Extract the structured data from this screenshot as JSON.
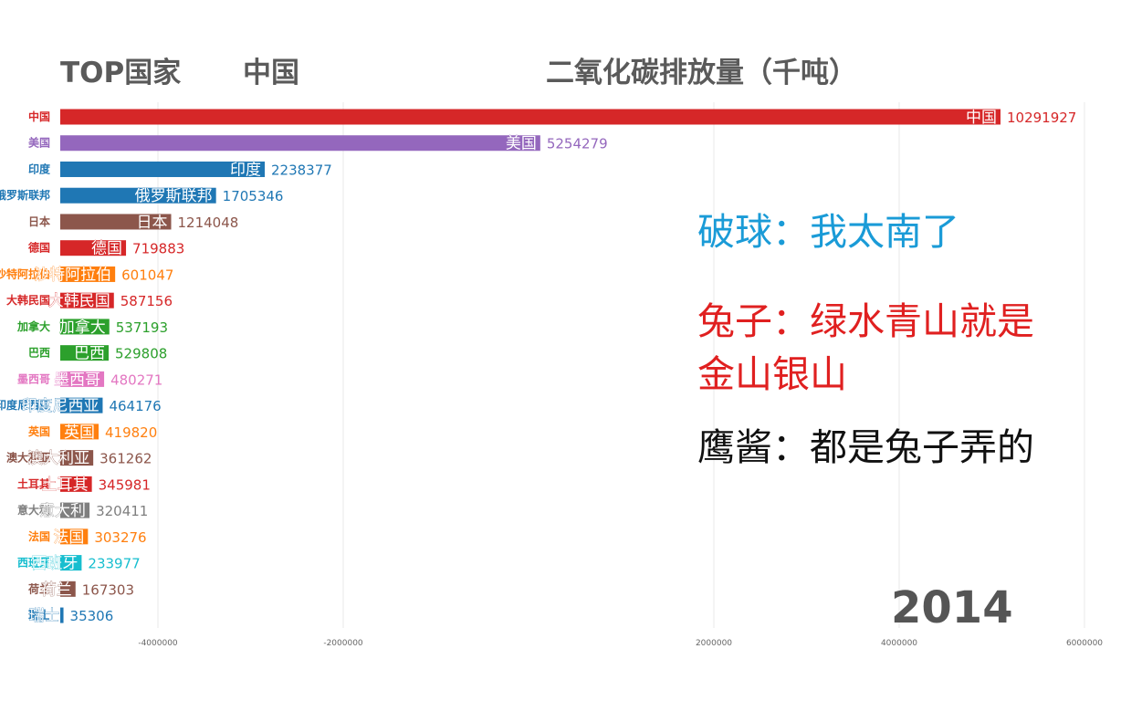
{
  "header": {
    "top_label": "TOP国家",
    "country_label": "中国",
    "metric_label": "二氧化碳排放量（千吨）"
  },
  "captions": [
    {
      "text": "破球：我太南了",
      "color": "#1a9bd7"
    },
    {
      "text": "兔子：绿水青山就是",
      "color": "#e02020"
    },
    {
      "text": "金山银山",
      "color": "#e02020"
    },
    {
      "text": "鹰酱：都是兔子弄的",
      "color": "#111111"
    }
  ],
  "year": "2014",
  "chart_data": {
    "type": "bar",
    "orientation": "horizontal",
    "xlim": [
      -10000000,
      10000000
    ],
    "x_ticks": [
      "-10000000",
      "-8000000",
      "-6000000",
      "-4000000",
      "-2000000",
      "2000000",
      "4000000",
      "6000000",
      "8000000",
      "10000000"
    ],
    "grid": true,
    "bars": [
      {
        "name": "中国",
        "value": 10291927,
        "color": "#d62728"
      },
      {
        "name": "美国",
        "value": 5254279,
        "color": "#9467bd"
      },
      {
        "name": "印度",
        "value": 2238377,
        "color": "#1f77b4"
      },
      {
        "name": "俄罗斯联邦",
        "value": 1705346,
        "color": "#1f77b4"
      },
      {
        "name": "日本",
        "value": 1214048,
        "color": "#8c564b"
      },
      {
        "name": "德国",
        "value": 719883,
        "color": "#d62728"
      },
      {
        "name": "沙特阿拉伯",
        "value": 601047,
        "color": "#ff7f0e"
      },
      {
        "name": "大韩民国",
        "value": 587156,
        "color": "#d62728"
      },
      {
        "name": "加拿大",
        "value": 537193,
        "color": "#2ca02c"
      },
      {
        "name": "巴西",
        "value": 529808,
        "color": "#2ca02c"
      },
      {
        "name": "墨西哥",
        "value": 480271,
        "color": "#e377c2"
      },
      {
        "name": "印度尼西亚",
        "value": 464176,
        "color": "#1f77b4"
      },
      {
        "name": "英国",
        "value": 419820,
        "color": "#ff7f0e"
      },
      {
        "name": "澳大利亚",
        "value": 361262,
        "color": "#8c564b"
      },
      {
        "name": "土耳其",
        "value": 345981,
        "color": "#d62728"
      },
      {
        "name": "意大利",
        "value": 320411,
        "color": "#7f7f7f"
      },
      {
        "name": "法国",
        "value": 303276,
        "color": "#ff7f0e"
      },
      {
        "name": "西班牙",
        "value": 233977,
        "color": "#17becf"
      },
      {
        "name": "荷兰",
        "value": 167303,
        "color": "#8c564b"
      },
      {
        "name": "瑞士",
        "value": 35306,
        "color": "#1f77b4"
      }
    ]
  }
}
